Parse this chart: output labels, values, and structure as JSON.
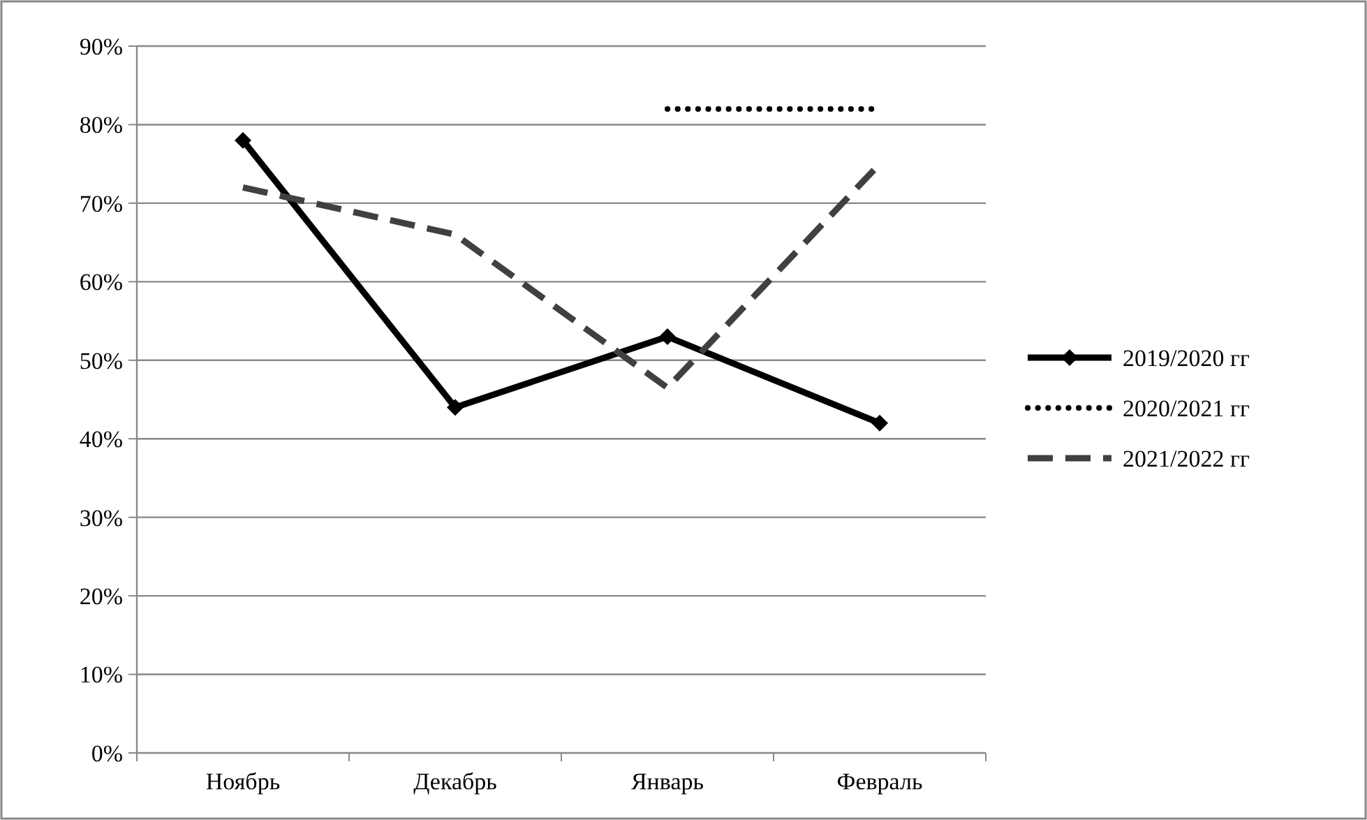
{
  "chart_data": {
    "type": "line",
    "categories": [
      "Ноябрь",
      "Декабрь",
      "Январь",
      "Февраль"
    ],
    "series": [
      {
        "name": "2019/2020 гг",
        "color": "#000000",
        "values": [
          78,
          44,
          53,
          42
        ],
        "marker": "diamond",
        "line_style": "solid"
      },
      {
        "name": "2020/2021 гг",
        "color": "#000000",
        "values": [
          null,
          null,
          82,
          82
        ],
        "marker": "none",
        "line_style": "dotted"
      },
      {
        "name": "2021/2022 гг",
        "color": "#404040",
        "values": [
          72,
          66,
          46.5,
          75
        ],
        "marker": "none",
        "line_style": "dashed"
      }
    ],
    "ylim": [
      0,
      90
    ],
    "yticks": [
      {
        "value": 0,
        "label": "0%"
      },
      {
        "value": 10,
        "label": "10%"
      },
      {
        "value": 20,
        "label": "20%"
      },
      {
        "value": 30,
        "label": "30%"
      },
      {
        "value": 40,
        "label": "40%"
      },
      {
        "value": 50,
        "label": "50%"
      },
      {
        "value": 60,
        "label": "60%"
      },
      {
        "value": 70,
        "label": "70%"
      },
      {
        "value": 80,
        "label": "80%"
      },
      {
        "value": 90,
        "label": "90%"
      }
    ],
    "grid": "y",
    "legend": "right"
  }
}
